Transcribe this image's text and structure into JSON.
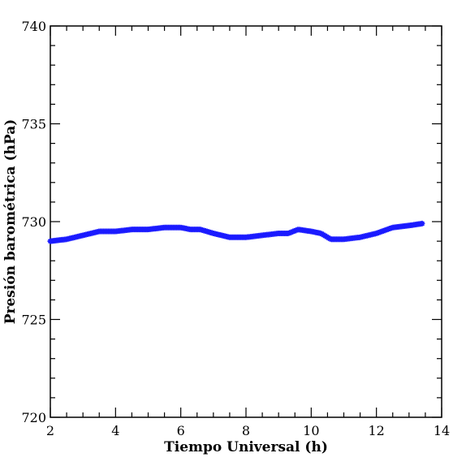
{
  "chart_data": {
    "type": "scatter",
    "xlabel": "Tiempo Universal (h)",
    "ylabel": "Presión barométrica (hPa)",
    "xlim": [
      2,
      14
    ],
    "ylim": [
      720,
      740
    ],
    "xticks": [
      2,
      4,
      6,
      8,
      10,
      12,
      14
    ],
    "yticks": [
      720,
      725,
      730,
      735,
      740
    ],
    "xtick_labels": [
      "2",
      "4",
      "6",
      "8",
      "10",
      "12",
      "14"
    ],
    "ytick_labels": [
      "720",
      "725",
      "730",
      "735",
      "740"
    ],
    "grid": false,
    "legend": "none",
    "marker": "star",
    "color": "#1a1aff",
    "series": [
      {
        "x": [
          2.0,
          2.5,
          3.0,
          3.5,
          4.0,
          4.5,
          5.0,
          5.5,
          6.0,
          6.3,
          6.6,
          7.0,
          7.5,
          8.0,
          8.5,
          9.0,
          9.3,
          9.6,
          10.0,
          10.3,
          10.6,
          11.0,
          11.5,
          12.0,
          12.5,
          13.0,
          13.4
        ],
        "y": [
          729.0,
          729.1,
          729.3,
          729.5,
          729.5,
          729.6,
          729.6,
          729.7,
          729.7,
          729.6,
          729.6,
          729.4,
          729.2,
          729.2,
          729.3,
          729.4,
          729.4,
          729.6,
          729.5,
          729.4,
          729.1,
          729.1,
          729.2,
          729.4,
          729.7,
          729.8,
          729.9
        ]
      }
    ]
  }
}
